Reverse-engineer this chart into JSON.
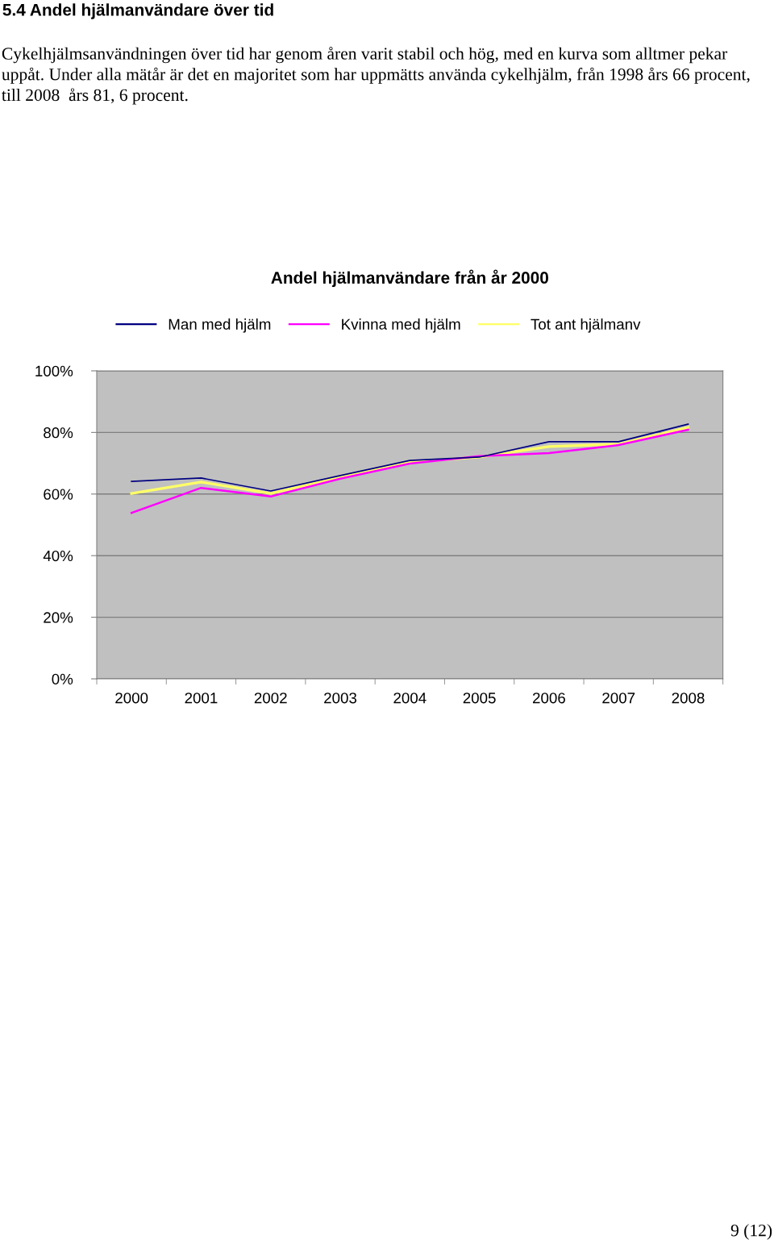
{
  "chart_data": {
    "type": "line",
    "title": "Andel hjälmanvändare från år 2000",
    "categories": [
      "2000",
      "2001",
      "2002",
      "2003",
      "2004",
      "2005",
      "2006",
      "2007",
      "2008"
    ],
    "series": [
      {
        "name": "Man med hjälm",
        "color": "#000080",
        "values": [
          64.1,
          65.2,
          61.0,
          66.0,
          70.9,
          72.0,
          77.0,
          77.0,
          82.7
        ]
      },
      {
        "name": "Kvinna med hjälm",
        "color": "#ff00ff",
        "values": [
          53.9,
          62.0,
          59.2,
          65.0,
          69.9,
          72.3,
          73.3,
          75.9,
          80.9
        ]
      },
      {
        "name": "Tot ant hjälmanv",
        "color": "#ffff66",
        "values": [
          60.2,
          63.9,
          60.2,
          65.5,
          70.4,
          72.0,
          75.4,
          76.2,
          81.6
        ]
      }
    ],
    "ylim": [
      0,
      100
    ],
    "yticks": [
      {
        "value": 0,
        "label": "0%"
      },
      {
        "value": 20,
        "label": "20%"
      },
      {
        "value": 40,
        "label": "40%"
      },
      {
        "value": 60,
        "label": "60%"
      },
      {
        "value": 80,
        "label": "80%"
      },
      {
        "value": 100,
        "label": "100%"
      }
    ],
    "grid": "y",
    "legend": "top",
    "marker": "none",
    "line_style": "solid",
    "annotations": [
      "5.4 Andel hjälmanvändare över tid",
      "Cykelhjälmsanvändningen över tid har genom åren varit stabil och hög, med en kurva som alltmer pekar uppåt. Under alla mätår är det en majoritet som har uppmätts använda cykelhjälm, från 1998 års 66 procent, till 2008  års 81, 6 procent.",
      "9 (12)"
    ]
  }
}
